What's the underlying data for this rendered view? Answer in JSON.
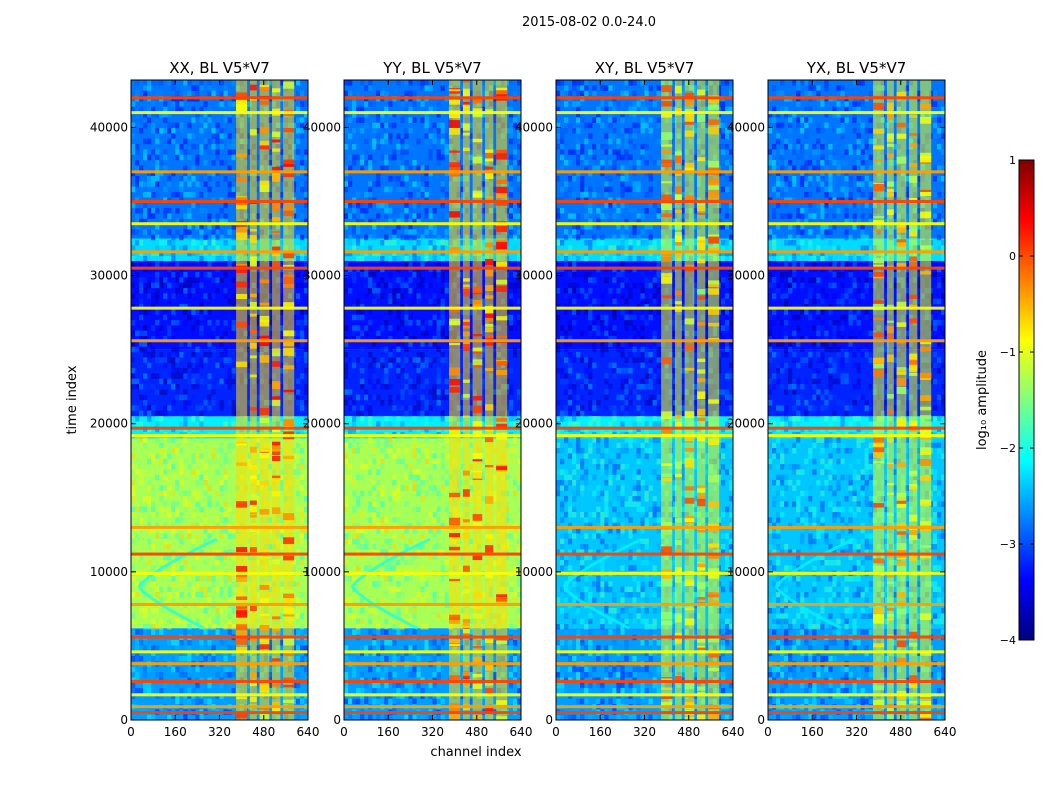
{
  "chart_data": {
    "type": "heatmap",
    "title": "2015-08-02 0.0-24.0",
    "xlabel": "channel index",
    "ylabel": "time index",
    "xlim": [
      0,
      640
    ],
    "ylim": [
      0,
      43200
    ],
    "xticks": [
      0,
      160,
      320,
      480,
      640
    ],
    "yticks": [
      0,
      10000,
      20000,
      30000,
      40000
    ],
    "colorbar": {
      "label": "log₁₀ amplitude",
      "range": [
        -4,
        1
      ],
      "ticks": [
        1,
        0,
        -1,
        -2,
        -3,
        -4
      ],
      "colormap": "jet",
      "stops": [
        "#00007f",
        "#0000ff",
        "#007fff",
        "#00ffff",
        "#7fff7f",
        "#ffff00",
        "#ff7f00",
        "#ff0000",
        "#7f0000"
      ]
    },
    "panels": [
      {
        "title": "XX, BL V5*V7",
        "corr": "XX"
      },
      {
        "title": "YY, BL V5*V7",
        "corr": "YY"
      },
      {
        "title": "XY, BL V5*V7",
        "corr": "XY"
      },
      {
        "title": "YX, BL V5*V7",
        "corr": "YX"
      }
    ],
    "segments": [
      {
        "t0": 0,
        "t1": 6200,
        "level": -2.6
      },
      {
        "t0": 6200,
        "t1": 19000,
        "level": -1.3,
        "cross_level": -2.4
      },
      {
        "t0": 19000,
        "t1": 20500,
        "level": -2.2
      },
      {
        "t0": 20500,
        "t1": 25000,
        "level": -3.2
      },
      {
        "t0": 25000,
        "t1": 31000,
        "level": -3.3
      },
      {
        "t0": 31000,
        "t1": 32500,
        "level": -2.3
      },
      {
        "t0": 32500,
        "t1": 43200,
        "level": -2.8
      }
    ],
    "rfi_channel_bands": [
      [
        380,
        420
      ],
      [
        430,
        455
      ],
      [
        465,
        500
      ],
      [
        510,
        540
      ],
      [
        550,
        590
      ]
    ],
    "rfi_time_lines": [
      500,
      900,
      1700,
      2600,
      3800,
      4600,
      5600,
      7800,
      9900,
      11200,
      13000,
      19200,
      19700,
      25600,
      27800,
      30500,
      31600,
      33500,
      35000,
      37000,
      41000,
      42000
    ]
  }
}
